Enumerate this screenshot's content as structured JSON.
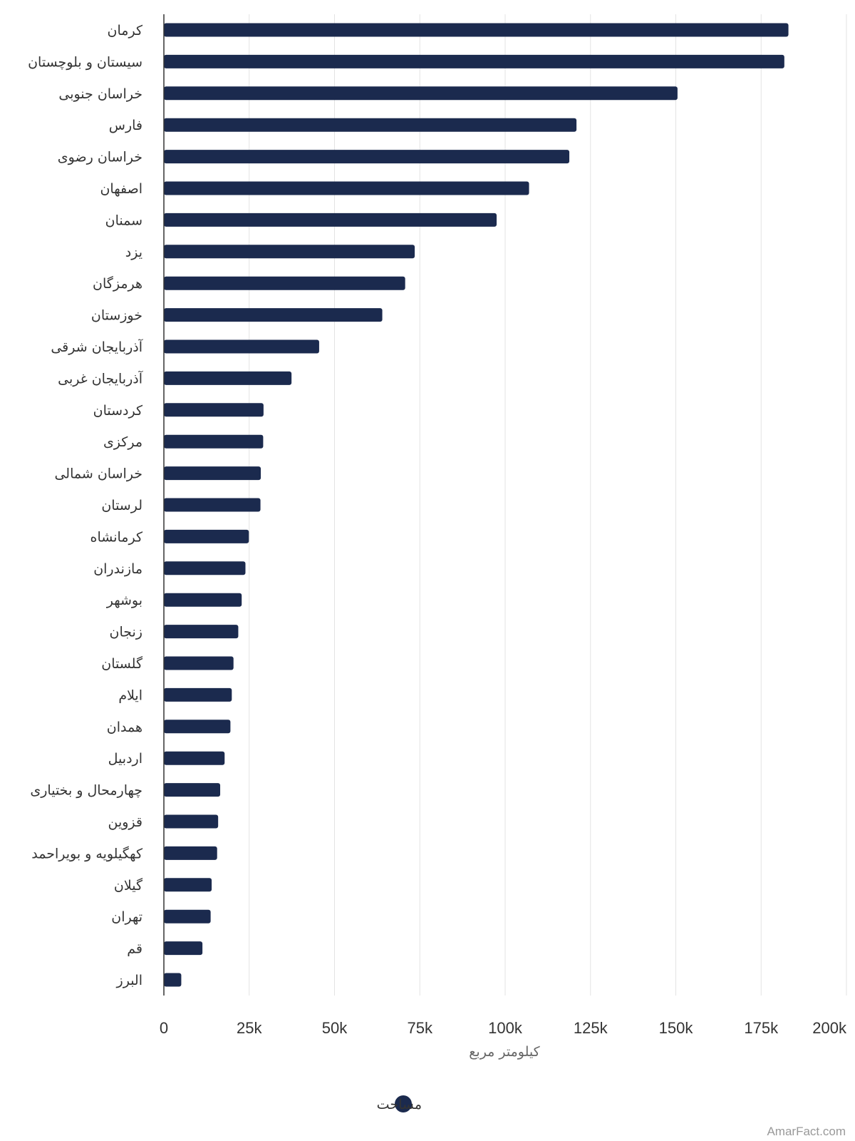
{
  "chart_data": {
    "type": "bar",
    "orientation": "horizontal",
    "categories": [
      "کرمان",
      "سیستان و بلوچستان",
      "خراسان جنوبی",
      "فارس",
      "خراسان رضوی",
      "اصفهان",
      "سمنان",
      "یزد",
      "هرمزگان",
      "خوزستان",
      "آذربایجان شرقی",
      "آذربایجان غربی",
      "کردستان",
      "مرکزی",
      "خراسان شمالی",
      "لرستان",
      "کرمانشاه",
      "مازندران",
      "بوشهر",
      "زنجان",
      "گلستان",
      "ایلام",
      "همدان",
      "اردبیل",
      "چهارمحال و بختیاری",
      "قزوین",
      "کهگیلویه و بویراحمد",
      "گیلان",
      "تهران",
      "قم",
      "البرز"
    ],
    "series": [
      {
        "name": "مساحت",
        "color": "#1b2a4e",
        "values": [
          183000,
          181800,
          150500,
          120900,
          118800,
          107000,
          97500,
          73500,
          70700,
          64000,
          45500,
          37400,
          29200,
          29100,
          28400,
          28300,
          24900,
          23900,
          22800,
          21800,
          20400,
          19900,
          19500,
          17800,
          16500,
          15900,
          15600,
          14000,
          13700,
          11300,
          5100
        ]
      }
    ],
    "xlabel": "کیلومتر مربع",
    "ylabel": "",
    "xlim": [
      0,
      200000
    ],
    "ticks": [
      "0",
      "25k",
      "50k",
      "75k",
      "100k",
      "125k",
      "150k",
      "175k",
      "200k"
    ],
    "tick_values": [
      0,
      25000,
      50000,
      75000,
      100000,
      125000,
      150000,
      175000,
      200000
    ],
    "grid": true,
    "legend": "bottom-center"
  },
  "credit": "AmarFact.com"
}
